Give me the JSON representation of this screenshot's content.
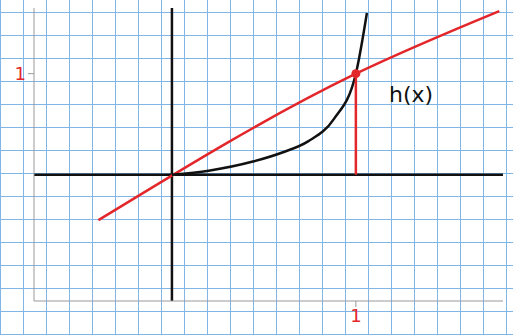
{
  "chart_data": {
    "type": "line",
    "xlim": [
      -0.75,
      1.8
    ],
    "ylim": [
      -1.25,
      1.65
    ],
    "xticks": [
      1
    ],
    "yticks": [
      1
    ],
    "grid": false,
    "series": [
      {
        "type": "line",
        "color": "#e3262a",
        "line_style": "solid",
        "marker": "none",
        "x": [
          -0.4,
          1.0,
          1.78
        ],
        "values": [
          -0.45,
          1.0,
          1.62
        ]
      },
      {
        "type": "line",
        "color": "#111111",
        "line_style": "solid",
        "marker": "none",
        "x": [
          0,
          0.2,
          0.44,
          0.6,
          0.74,
          0.88,
          1.0,
          1.06
        ],
        "values": [
          0,
          0.04,
          0.13,
          0.22,
          0.33,
          0.55,
          1.0,
          1.6
        ]
      },
      {
        "type": "line",
        "color": "#e3262a",
        "line_style": "solid",
        "marker": "none",
        "x": [
          1.0,
          1.0
        ],
        "values": [
          0,
          1.0
        ]
      },
      {
        "type": "scatter",
        "color": "#e3262a",
        "marker": "circle",
        "x": [
          1.0
        ],
        "values": [
          1.0
        ]
      }
    ],
    "annotations": [
      {
        "text": "h(x)",
        "x": 1.3,
        "y": 0.8
      }
    ]
  }
}
